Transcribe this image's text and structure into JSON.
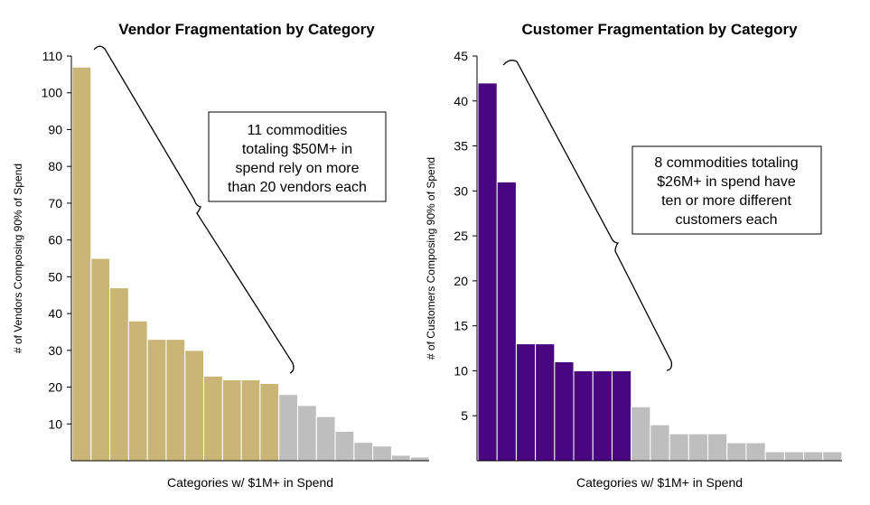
{
  "colors": {
    "vendor_highlight": "#C9B676",
    "customer_highlight": "#48067F",
    "rest": "#BEBEBE",
    "axis": "#000000"
  },
  "chart_data": [
    {
      "type": "bar",
      "title": "Vendor Fragmentation by Category",
      "xlabel": "Categories w/ $1M+ in Spend",
      "ylabel": "# of Vendors Composing 90% of Spend",
      "ylim": [
        0,
        110
      ],
      "yticks": [
        10,
        20,
        30,
        40,
        50,
        60,
        70,
        80,
        90,
        100,
        110
      ],
      "values": [
        107,
        55,
        47,
        38,
        33,
        33,
        30,
        23,
        22,
        22,
        21,
        18,
        15,
        12,
        8,
        5,
        4,
        1.5,
        1
      ],
      "highlight_count": 11,
      "annotation": [
        "11 commodities",
        "totaling $50M+ in",
        "spend rely on more",
        "than 20 vendors each"
      ],
      "grid": false
    },
    {
      "type": "bar",
      "title": "Customer Fragmentation by Category",
      "xlabel": "Categories w/ $1M+ in Spend",
      "ylabel": "# of Customers Composing 90% of Spend",
      "ylim": [
        0,
        45
      ],
      "yticks": [
        5,
        10,
        15,
        20,
        25,
        30,
        35,
        40,
        45
      ],
      "values": [
        42,
        31,
        13,
        13,
        11,
        10,
        10,
        10,
        6,
        4,
        3,
        3,
        3,
        2,
        2,
        1,
        1,
        1,
        1
      ],
      "highlight_count": 8,
      "annotation": [
        "8 commodities totaling",
        "$26M+ in spend have",
        "ten or more different",
        "customers each"
      ],
      "grid": false
    }
  ]
}
